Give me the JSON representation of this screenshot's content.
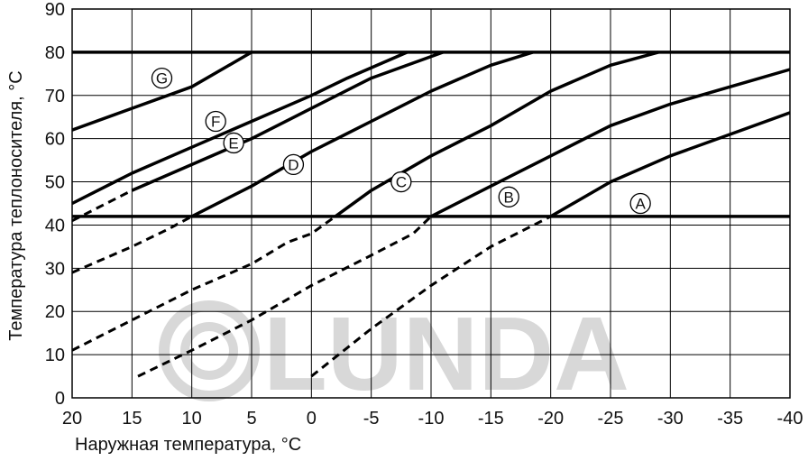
{
  "chart_data": {
    "type": "line",
    "title": "",
    "xlabel": "Наружная температура, °C",
    "ylabel": "Температура теплоносителя, °C",
    "xlim": [
      20,
      -40
    ],
    "ylim": [
      0,
      90
    ],
    "x_ticks": [
      "20",
      "15",
      "10",
      "5",
      "0",
      "-5",
      "-10",
      "-15",
      "-20",
      "-25",
      "-30",
      "-35",
      "-40"
    ],
    "y_ticks": [
      "0",
      "10",
      "20",
      "30",
      "40",
      "50",
      "60",
      "70",
      "80",
      "90"
    ],
    "grid": true,
    "limits": [
      {
        "name": "max",
        "y": 80
      },
      {
        "name": "min",
        "y": 42
      }
    ],
    "series": [
      {
        "name": "A",
        "label_at": [
          -27.5,
          45
        ],
        "points": [
          [
            0,
            5
          ],
          [
            -5,
            16
          ],
          [
            -10,
            26
          ],
          [
            -15,
            35
          ],
          [
            -20,
            42
          ],
          [
            -25,
            50
          ],
          [
            -30,
            56
          ],
          [
            -35,
            61
          ],
          [
            -40,
            66
          ]
        ]
      },
      {
        "name": "B",
        "label_at": [
          -16.5,
          46.5
        ],
        "points": [
          [
            14.5,
            5
          ],
          [
            10,
            11
          ],
          [
            5,
            18
          ],
          [
            0,
            26
          ],
          [
            -5,
            33
          ],
          [
            -8.5,
            38
          ],
          [
            -10,
            42
          ],
          [
            -15,
            49
          ],
          [
            -20,
            56
          ],
          [
            -25,
            63
          ],
          [
            -30,
            68
          ],
          [
            -35,
            72
          ],
          [
            -40,
            76
          ]
        ]
      },
      {
        "name": "C",
        "label_at": [
          -7.5,
          50
        ],
        "points": [
          [
            20,
            11
          ],
          [
            15,
            18
          ],
          [
            10,
            25
          ],
          [
            5,
            31
          ],
          [
            2,
            36
          ],
          [
            0,
            38
          ],
          [
            -2,
            42
          ],
          [
            -5,
            48
          ],
          [
            -10,
            56
          ],
          [
            -15,
            63
          ],
          [
            -20,
            71
          ],
          [
            -25,
            77
          ],
          [
            -29,
            80
          ]
        ]
      },
      {
        "name": "D",
        "label_at": [
          1.5,
          54
        ],
        "points": [
          [
            20,
            29
          ],
          [
            15,
            35
          ],
          [
            12,
            39
          ],
          [
            10,
            42
          ],
          [
            5,
            49
          ],
          [
            0,
            57
          ],
          [
            -5,
            64
          ],
          [
            -10,
            71
          ],
          [
            -15,
            77
          ],
          [
            -18.5,
            80
          ]
        ]
      },
      {
        "name": "E",
        "label_at": [
          6.5,
          59
        ],
        "points": [
          [
            20,
            41
          ],
          [
            15,
            48
          ],
          [
            10,
            54
          ],
          [
            5,
            60
          ],
          [
            0,
            67
          ],
          [
            -5,
            74
          ],
          [
            -11,
            80
          ]
        ]
      },
      {
        "name": "F",
        "label_at": [
          8,
          64
        ],
        "points": [
          [
            20,
            45
          ],
          [
            15,
            52
          ],
          [
            10,
            58
          ],
          [
            5,
            64
          ],
          [
            0,
            70
          ],
          [
            -3,
            74
          ],
          [
            -8,
            80
          ]
        ]
      },
      {
        "name": "G",
        "label_at": [
          12.5,
          74
        ],
        "points": [
          [
            20,
            62
          ],
          [
            15,
            67
          ],
          [
            10,
            72
          ],
          [
            5,
            80
          ]
        ]
      }
    ],
    "watermark": "LUNDA"
  }
}
